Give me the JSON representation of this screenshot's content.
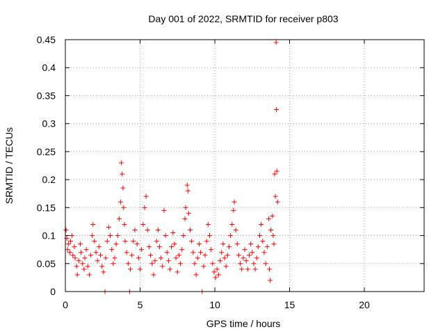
{
  "chart_data": {
    "type": "scatter",
    "title": "Day 001 of 2022, SRMTID for receiver p803",
    "xlabel": "GPS time / hours",
    "ylabel": "SRMTID / TECUs",
    "xlim": [
      0,
      24
    ],
    "ylim": [
      0,
      0.45
    ],
    "xticks": [
      0,
      5,
      10,
      15,
      20
    ],
    "xtick_labels": [
      "0",
      "5",
      "10",
      "15",
      "20"
    ],
    "yticks": [
      0,
      0.05,
      0.1,
      0.15,
      0.2,
      0.25,
      0.3,
      0.35,
      0.4,
      0.45
    ],
    "ytick_labels": [
      "0",
      "0.05",
      "0.1",
      "0.15",
      "0.2",
      "0.25",
      "0.3",
      "0.35",
      "0.4",
      "0.45"
    ],
    "grid": true,
    "marker": "+",
    "series": [
      {
        "name": "SRMTID",
        "color": "#ff0000",
        "points": [
          [
            0.05,
            0.11
          ],
          [
            0.1,
            0.095
          ],
          [
            0.15,
            0.075
          ],
          [
            0.2,
            0.085
          ],
          [
            0.3,
            0.07
          ],
          [
            0.35,
            0.09
          ],
          [
            0.45,
            0.1
          ],
          [
            0.5,
            0.065
          ],
          [
            0.6,
            0.08
          ],
          [
            0.65,
            0.06
          ],
          [
            0.75,
            0.045
          ],
          [
            0.8,
            0.03
          ],
          [
            0.9,
            0.055
          ],
          [
            1.0,
            0.085
          ],
          [
            1.05,
            0.07
          ],
          [
            1.15,
            0.05
          ],
          [
            1.25,
            0.04
          ],
          [
            1.3,
            0.06
          ],
          [
            1.4,
            0.075
          ],
          [
            1.5,
            0.045
          ],
          [
            1.6,
            0.03
          ],
          [
            1.7,
            0.065
          ],
          [
            1.8,
            0.1
          ],
          [
            1.85,
            0.12
          ],
          [
            1.95,
            0.09
          ],
          [
            2.05,
            0.07
          ],
          [
            2.15,
            0.055
          ],
          [
            2.25,
            0.08
          ],
          [
            2.35,
            0.065
          ],
          [
            2.45,
            0.045
          ],
          [
            2.55,
            0.035
          ],
          [
            2.65,
            0.0
          ],
          [
            2.7,
            0.06
          ],
          [
            2.8,
            0.09
          ],
          [
            2.9,
            0.115
          ],
          [
            3.0,
            0.1
          ],
          [
            3.1,
            0.075
          ],
          [
            3.2,
            0.05
          ],
          [
            3.3,
            0.06
          ],
          [
            3.4,
            0.085
          ],
          [
            3.5,
            0.1
          ],
          [
            3.6,
            0.13
          ],
          [
            3.7,
            0.16
          ],
          [
            3.75,
            0.23
          ],
          [
            3.8,
            0.21
          ],
          [
            3.85,
            0.185
          ],
          [
            3.9,
            0.15
          ],
          [
            3.95,
            0.12
          ],
          [
            4.0,
            0.09
          ],
          [
            4.1,
            0.07
          ],
          [
            4.2,
            0.05
          ],
          [
            4.3,
            0.0
          ],
          [
            4.35,
            0.04
          ],
          [
            4.45,
            0.065
          ],
          [
            4.55,
            0.09
          ],
          [
            4.65,
            0.11
          ],
          [
            4.8,
            0.085
          ],
          [
            4.9,
            0.06
          ],
          [
            5.0,
            0.04
          ],
          [
            5.1,
            0.075
          ],
          [
            5.2,
            0.12
          ],
          [
            5.3,
            0.15
          ],
          [
            5.4,
            0.17
          ],
          [
            5.5,
            0.11
          ],
          [
            5.6,
            0.08
          ],
          [
            5.7,
            0.065
          ],
          [
            5.8,
            0.05
          ],
          [
            5.9,
            0.03
          ],
          [
            6.0,
            0.055
          ],
          [
            6.1,
            0.09
          ],
          [
            6.2,
            0.11
          ],
          [
            6.3,
            0.08
          ],
          [
            6.4,
            0.06
          ],
          [
            6.5,
            0.045
          ],
          [
            6.6,
            0.145
          ],
          [
            6.7,
            0.1
          ],
          [
            6.8,
            0.07
          ],
          [
            6.9,
            0.055
          ],
          [
            7.0,
            0.04
          ],
          [
            7.1,
            0.08
          ],
          [
            7.2,
            0.105
          ],
          [
            7.3,
            0.085
          ],
          [
            7.4,
            0.06
          ],
          [
            7.5,
            0.035
          ],
          [
            7.6,
            0.065
          ],
          [
            7.7,
            0.05
          ],
          [
            7.8,
            0.075
          ],
          [
            7.9,
            0.1
          ],
          [
            8.0,
            0.13
          ],
          [
            8.05,
            0.15
          ],
          [
            8.15,
            0.19
          ],
          [
            8.2,
            0.18
          ],
          [
            8.25,
            0.14
          ],
          [
            8.35,
            0.11
          ],
          [
            8.45,
            0.09
          ],
          [
            8.55,
            0.07
          ],
          [
            8.65,
            0.05
          ],
          [
            8.75,
            0.03
          ],
          [
            8.85,
            0.06
          ],
          [
            8.95,
            0.085
          ],
          [
            9.05,
            0.07
          ],
          [
            9.15,
            0.0
          ],
          [
            9.25,
            0.045
          ],
          [
            9.35,
            0.065
          ],
          [
            9.45,
            0.09
          ],
          [
            9.55,
            0.12
          ],
          [
            9.65,
            0.1
          ],
          [
            9.75,
            0.075
          ],
          [
            9.85,
            0.05
          ],
          [
            9.95,
            0.035
          ],
          [
            10.05,
            0.025
          ],
          [
            10.15,
            0.04
          ],
          [
            10.25,
            0.03
          ],
          [
            10.35,
            0.055
          ],
          [
            10.45,
            0.07
          ],
          [
            10.55,
            0.085
          ],
          [
            10.65,
            0.06
          ],
          [
            10.75,
            0.045
          ],
          [
            10.85,
            0.065
          ],
          [
            10.95,
            0.08
          ],
          [
            11.05,
            0.1
          ],
          [
            11.15,
            0.12
          ],
          [
            11.25,
            0.145
          ],
          [
            11.3,
            0.16
          ],
          [
            11.4,
            0.11
          ],
          [
            11.5,
            0.085
          ],
          [
            11.6,
            0.065
          ],
          [
            11.7,
            0.05
          ],
          [
            11.8,
            0.04
          ],
          [
            11.9,
            0.06
          ],
          [
            12.0,
            0.075
          ],
          [
            12.1,
            0.055
          ],
          [
            12.2,
            0.04
          ],
          [
            12.3,
            0.065
          ],
          [
            12.4,
            0.085
          ],
          [
            12.5,
            0.07
          ],
          [
            12.6,
            0.05
          ],
          [
            12.7,
            0.04
          ],
          [
            12.8,
            0.06
          ],
          [
            12.9,
            0.08
          ],
          [
            13.0,
            0.1
          ],
          [
            13.1,
            0.12
          ],
          [
            13.2,
            0.09
          ],
          [
            13.3,
            0.07
          ],
          [
            13.4,
            0.05
          ],
          [
            13.5,
            0.08
          ],
          [
            13.6,
            0.13
          ],
          [
            13.65,
            0.04
          ],
          [
            13.7,
            0.02
          ],
          [
            13.75,
            0.11
          ],
          [
            13.85,
            0.135
          ],
          [
            13.9,
            0.1
          ],
          [
            13.95,
            0.085
          ],
          [
            14.0,
            0.21
          ],
          [
            14.05,
            0.17
          ],
          [
            14.1,
            0.445
          ],
          [
            14.12,
            0.325
          ],
          [
            14.15,
            0.215
          ],
          [
            14.2,
            0.16
          ]
        ]
      }
    ]
  }
}
